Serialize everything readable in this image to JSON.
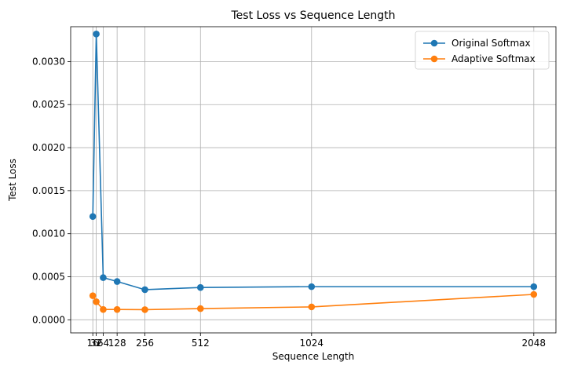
{
  "chart_data": {
    "type": "line",
    "title": "Test Loss vs Sequence Length",
    "xlabel": "Sequence Length",
    "ylabel": "Test Loss",
    "x": [
      16,
      32,
      64,
      128,
      256,
      512,
      1024,
      2048
    ],
    "x_tick_labels": [
      "16",
      "32",
      "64",
      "128",
      "256",
      "512",
      "1024",
      "2048"
    ],
    "y_ticks": [
      0.0,
      0.0005,
      0.001,
      0.0015,
      0.002,
      0.0025,
      0.003
    ],
    "y_tick_labels": [
      "0.0000",
      "0.0005",
      "0.0010",
      "0.0015",
      "0.0020",
      "0.0025",
      "0.0030"
    ],
    "xlim": [
      -86,
      2150
    ],
    "ylim": [
      -0.000152,
      0.003405
    ],
    "grid": true,
    "legend_position": "top-right",
    "series": [
      {
        "name": "Original Softmax",
        "color": "#1f77b4",
        "values": [
          0.0012,
          0.00332,
          0.00049,
          0.000445,
          0.00035,
          0.000375,
          0.000385,
          0.000385
        ]
      },
      {
        "name": "Adaptive Softmax",
        "color": "#ff7f0e",
        "values": [
          0.00028,
          0.00021,
          0.00012,
          0.00012,
          0.000118,
          0.00013,
          0.00015,
          0.000295
        ]
      }
    ]
  }
}
